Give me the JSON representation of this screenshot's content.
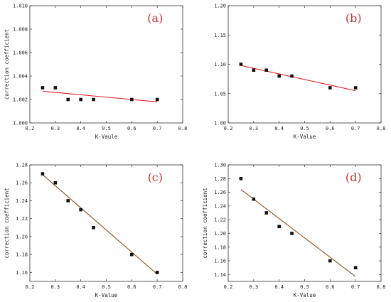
{
  "colors": {
    "axis": "#333333",
    "marker": "#111111",
    "fit_red": "#e02020",
    "fit_brown": "#9c4a12",
    "panel_label": "#d03030"
  },
  "chart_data": [
    {
      "type": "scatter",
      "panel_label": "(a)",
      "xlabel": "K-Vaule",
      "ylabel": "correction coefficient",
      "xlim": [
        0.2,
        0.8
      ],
      "ylim": [
        1.0,
        1.01
      ],
      "xticks": [
        0.2,
        0.3,
        0.4,
        0.5,
        0.6,
        0.7,
        0.8
      ],
      "xtick_labels": [
        "0.2",
        "0.3",
        "0.4",
        "0.5",
        "0.6",
        "0.7",
        "0.8"
      ],
      "yticks": [
        1.0,
        1.002,
        1.004,
        1.006,
        1.008,
        1.01
      ],
      "ytick_labels": [
        "1.000",
        "1.002",
        "1.004",
        "1.006",
        "1.008",
        "1.010"
      ],
      "series": [
        {
          "x": [
            0.25,
            0.3,
            0.35,
            0.4,
            0.45,
            0.6,
            0.7
          ],
          "y": [
            1.003,
            1.003,
            1.002,
            1.002,
            1.002,
            1.002,
            1.002
          ]
        }
      ],
      "fit_line": {
        "x": [
          0.25,
          0.7
        ],
        "y": [
          1.0027,
          1.0018
        ]
      },
      "fit_color": "#e02020",
      "grid": false
    },
    {
      "type": "scatter",
      "panel_label": "(b)",
      "xlabel": "K-Value",
      "ylabel": "",
      "xlim": [
        0.2,
        0.8
      ],
      "ylim": [
        1.0,
        1.2
      ],
      "xticks": [
        0.2,
        0.3,
        0.4,
        0.5,
        0.6,
        0.7,
        0.8
      ],
      "xtick_labels": [
        "0.2",
        "0.3",
        "0.4",
        "0.5",
        "0.6",
        "0.7",
        "0.8"
      ],
      "yticks": [
        1.0,
        1.05,
        1.1,
        1.15,
        1.2
      ],
      "ytick_labels": [
        "1.00",
        "1.05",
        "1.10",
        "1.15",
        "1.20"
      ],
      "series": [
        {
          "x": [
            0.25,
            0.3,
            0.35,
            0.4,
            0.45,
            0.6,
            0.7
          ],
          "y": [
            1.1,
            1.09,
            1.09,
            1.08,
            1.08,
            1.06,
            1.06
          ]
        }
      ],
      "fit_line": {
        "x": [
          0.25,
          0.7
        ],
        "y": [
          1.098,
          1.055
        ]
      },
      "fit_color": "#e02020",
      "grid": false
    },
    {
      "type": "scatter",
      "panel_label": "(c)",
      "xlabel": "K-Value",
      "ylabel": "correction coefficient",
      "xlim": [
        0.2,
        0.8
      ],
      "ylim": [
        1.15,
        1.28
      ],
      "xticks": [
        0.2,
        0.3,
        0.4,
        0.5,
        0.6,
        0.7,
        0.8
      ],
      "xtick_labels": [
        "0.2",
        "0.3",
        "0.4",
        "0.5",
        "0.6",
        "0.7",
        "0.8"
      ],
      "yticks": [
        1.16,
        1.18,
        1.2,
        1.22,
        1.24,
        1.26,
        1.28
      ],
      "ytick_labels": [
        "1.16",
        "1.18",
        "1.20",
        "1.22",
        "1.24",
        "1.26",
        "1.28"
      ],
      "series": [
        {
          "x": [
            0.25,
            0.3,
            0.35,
            0.4,
            0.45,
            0.6,
            0.7
          ],
          "y": [
            1.27,
            1.26,
            1.24,
            1.23,
            1.21,
            1.18,
            1.16
          ]
        }
      ],
      "fit_line": {
        "x": [
          0.25,
          0.7
        ],
        "y": [
          1.269,
          1.158
        ]
      },
      "fit_color": "#9c4a12",
      "grid": false
    },
    {
      "type": "scatter",
      "panel_label": "(d)",
      "xlabel": "K-Value",
      "ylabel": "correction coefficient",
      "xlim": [
        0.2,
        0.8
      ],
      "ylim": [
        1.13,
        1.3
      ],
      "xticks": [
        0.2,
        0.3,
        0.4,
        0.5,
        0.6,
        0.7,
        0.8
      ],
      "xtick_labels": [
        "0.2",
        "0.3",
        "0.4",
        "0.5",
        "0.6",
        "0.7",
        "0.8"
      ],
      "yticks": [
        1.14,
        1.16,
        1.18,
        1.2,
        1.22,
        1.24,
        1.26,
        1.28,
        1.3
      ],
      "ytick_labels": [
        "1.14",
        "1.16",
        "1.18",
        "1.20",
        "1.22",
        "1.24",
        "1.26",
        "1.28",
        "1.30"
      ],
      "series": [
        {
          "x": [
            0.25,
            0.3,
            0.35,
            0.4,
            0.45,
            0.6,
            0.7
          ],
          "y": [
            1.28,
            1.25,
            1.23,
            1.21,
            1.2,
            1.16,
            1.15
          ]
        }
      ],
      "fit_line": {
        "x": [
          0.25,
          0.7
        ],
        "y": [
          1.264,
          1.137
        ]
      },
      "fit_color": "#9c4a12",
      "grid": false
    }
  ]
}
